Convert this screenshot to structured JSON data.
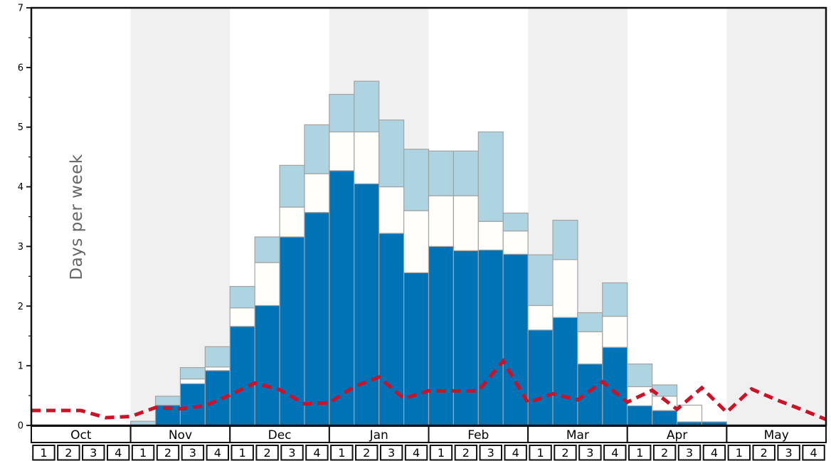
{
  "chart_data": {
    "type": "bar",
    "subtype": "stacked-bars-with-dashed-line",
    "title": "",
    "xlabel": "",
    "ylabel": "Days per week",
    "ylim": [
      0,
      7
    ],
    "y_major_ticks": [
      0,
      1,
      2,
      3,
      4,
      5,
      6,
      7
    ],
    "y_minor_interval": 0.5,
    "grid": "off",
    "legend": "none",
    "week_labels": [
      "1",
      "2",
      "3",
      "4"
    ],
    "months": [
      {
        "label": "Oct",
        "shaded": false
      },
      {
        "label": "Nov",
        "shaded": true
      },
      {
        "label": "Dec",
        "shaded": false
      },
      {
        "label": "Jan",
        "shaded": true
      },
      {
        "label": "Feb",
        "shaded": false
      },
      {
        "label": "Mar",
        "shaded": true
      },
      {
        "label": "Apr",
        "shaded": false
      },
      {
        "label": "May",
        "shaded": true
      }
    ],
    "bars": {
      "units": "days per week, cumulative stack tops per week (Oct wk1 ... May wk4)",
      "series": [
        {
          "name": "dark-blue-stack",
          "tops": [
            0,
            0,
            0,
            0,
            0,
            0.34,
            0.7,
            0.92,
            1.66,
            2.01,
            3.16,
            3.57,
            4.27,
            4.05,
            3.22,
            2.56,
            3.0,
            2.93,
            2.94,
            2.87,
            1.6,
            1.81,
            1.03,
            1.31,
            0.33,
            0.25,
            0.06,
            0.06,
            0,
            0,
            0,
            0
          ]
        },
        {
          "name": "white-stack",
          "tops": [
            0,
            0,
            0,
            0,
            0,
            0.34,
            0.78,
            0.98,
            1.97,
            2.73,
            3.66,
            4.22,
            4.92,
            4.92,
            4.0,
            3.6,
            3.85,
            3.85,
            3.42,
            3.26,
            2.01,
            2.78,
            1.57,
            1.83,
            0.65,
            0.49,
            0.34,
            0.06,
            0,
            0,
            0,
            0
          ]
        },
        {
          "name": "light-blue-stack",
          "tops": [
            0,
            0,
            0,
            0,
            0.07,
            0.49,
            0.97,
            1.32,
            2.33,
            3.16,
            4.36,
            5.04,
            5.55,
            5.77,
            5.12,
            4.63,
            4.6,
            4.6,
            4.92,
            3.56,
            2.86,
            3.44,
            1.89,
            2.39,
            1.03,
            0.68,
            0.34,
            0.06,
            0,
            0,
            0,
            0
          ]
        }
      ]
    },
    "line": {
      "name": "red-dashed-line",
      "units": "days per week, one value at each week boundary (33 points)",
      "values": [
        0.25,
        0.25,
        0.25,
        0.13,
        0.15,
        0.3,
        0.28,
        0.33,
        0.51,
        0.71,
        0.6,
        0.36,
        0.38,
        0.65,
        0.81,
        0.45,
        0.58,
        0.58,
        0.58,
        1.08,
        0.38,
        0.53,
        0.43,
        0.73,
        0.39,
        0.59,
        0.27,
        0.63,
        0.22,
        0.61,
        0.43,
        0.27,
        0.1
      ]
    },
    "colors": {
      "dark_blue": "#0073b6",
      "white_segment": "#fffefb",
      "light_blue": "#afd4e1",
      "segment_border": "#a3a3a3",
      "line_red": "#ce1126",
      "band_gray": "#f0f0f0",
      "axis_black": "#111111",
      "ylabel_gray": "#666666"
    }
  }
}
